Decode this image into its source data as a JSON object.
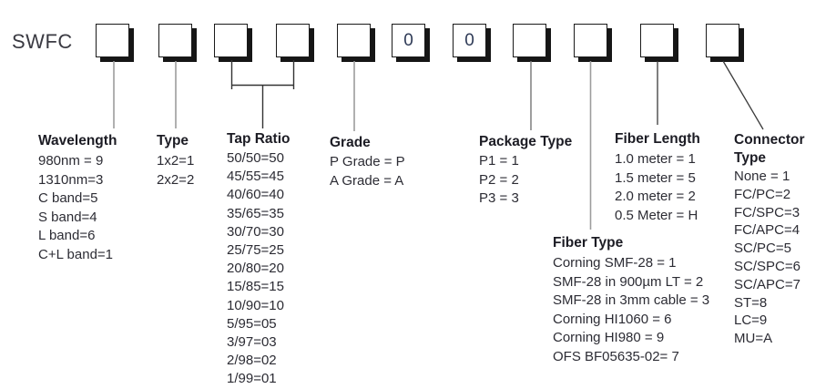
{
  "product_code": "SWFC",
  "part_code": {
    "boxes": [
      "",
      "",
      "",
      "",
      "",
      "0",
      "0",
      "",
      "",
      "",
      ""
    ]
  },
  "sections": [
    {
      "id": "wavelength",
      "heading": "Wavelength",
      "items": [
        "980nm = 9",
        "1310nm=3",
        "C band=5",
        "S band=4",
        "L band=6",
        "C+L band=1"
      ]
    },
    {
      "id": "type",
      "heading": "Type",
      "items": [
        "1x2=1",
        "2x2=2"
      ]
    },
    {
      "id": "tap_ratio",
      "heading": "Tap Ratio",
      "items": [
        "50/50=50",
        "45/55=45",
        "40/60=40",
        "35/65=35",
        "30/70=30",
        "25/75=25",
        "20/80=20",
        "15/85=15",
        "10/90=10",
        "5/95=05",
        "3/97=03",
        "2/98=02",
        "1/99=01"
      ]
    },
    {
      "id": "grade",
      "heading": "Grade",
      "items": [
        "P Grade = P",
        "A Grade = A"
      ]
    },
    {
      "id": "package_type",
      "heading": "Package Type",
      "items": [
        "P1 = 1",
        "P2 = 2",
        "P3 = 3"
      ]
    },
    {
      "id": "fiber_type",
      "heading": "Fiber Type",
      "items": [
        "Corning SMF-28 = 1",
        "SMF-28 in 900µm LT = 2",
        "SMF-28 in 3mm cable = 3",
        "Corning HI1060 = 6",
        "Corning HI980 = 9",
        "OFS BF05635-02= 7"
      ]
    },
    {
      "id": "fiber_length",
      "heading": "Fiber Length",
      "items": [
        "1.0 meter = 1",
        "1.5 meter = 5",
        "2.0 meter = 2",
        "0.5 Meter = H"
      ]
    },
    {
      "id": "connector_type",
      "heading": "Connector Type",
      "items": [
        "None = 1",
        "FC/PC=2",
        "FC/SPC=3",
        "FC/APC=4",
        "SC/PC=5",
        "SC/SPC=6",
        "SC/APC=7",
        "ST=8",
        "LC=9",
        "MU=A"
      ]
    }
  ],
  "colors": {
    "heading_text": "#1c1c24",
    "body_text": "#2c2c34",
    "box_border": "#1a1a1a",
    "box_shadow_dark": "#161616",
    "digit_color": "#2e3a56",
    "line_gray": "#9d9d9d",
    "line_dark": "#333333",
    "background": "#ffffff"
  }
}
